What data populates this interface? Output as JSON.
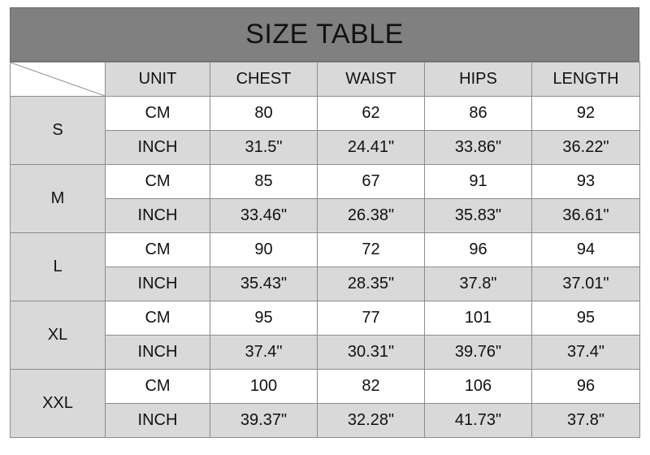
{
  "title": "SIZE TABLE",
  "headers": [
    "UNIT",
    "CHEST",
    "WAIST",
    "HIPS",
    "LENGTH"
  ],
  "colors": {
    "title_bg": "#808080",
    "shade": "#d9d9d9",
    "border": "#8c8c8c"
  },
  "sizes": [
    {
      "size": "S",
      "rows": [
        {
          "unit": "CM",
          "values": [
            "80",
            "62",
            "86",
            "92"
          ]
        },
        {
          "unit": "INCH",
          "values": [
            "31.5\"",
            "24.41\"",
            "33.86\"",
            "36.22\""
          ]
        }
      ]
    },
    {
      "size": "M",
      "rows": [
        {
          "unit": "CM",
          "values": [
            "85",
            "67",
            "91",
            "93"
          ]
        },
        {
          "unit": "INCH",
          "values": [
            "33.46\"",
            "26.38\"",
            "35.83\"",
            "36.61\""
          ]
        }
      ]
    },
    {
      "size": "L",
      "rows": [
        {
          "unit": "CM",
          "values": [
            "90",
            "72",
            "96",
            "94"
          ]
        },
        {
          "unit": "INCH",
          "values": [
            "35.43\"",
            "28.35\"",
            "37.8\"",
            "37.01\""
          ]
        }
      ]
    },
    {
      "size": "XL",
      "rows": [
        {
          "unit": "CM",
          "values": [
            "95",
            "77",
            "101",
            "95"
          ]
        },
        {
          "unit": "INCH",
          "values": [
            "37.4\"",
            "30.31\"",
            "39.76\"",
            "37.4\""
          ]
        }
      ]
    },
    {
      "size": "XXL",
      "rows": [
        {
          "unit": "CM",
          "values": [
            "100",
            "82",
            "106",
            "96"
          ]
        },
        {
          "unit": "INCH",
          "values": [
            "39.37\"",
            "32.28\"",
            "41.73\"",
            "37.8\""
          ]
        }
      ]
    }
  ]
}
